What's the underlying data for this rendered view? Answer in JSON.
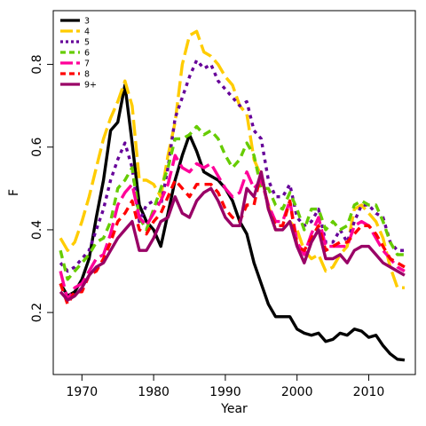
{
  "chart_data": {
    "type": "line",
    "xlabel": "Year",
    "ylabel": "F",
    "xlim": [
      1966,
      2016.5
    ],
    "ylim": [
      0.05,
      0.93
    ],
    "x_ticks": [
      1970,
      1980,
      1990,
      2000,
      2010
    ],
    "y_ticks": [
      0.2,
      0.4,
      0.6,
      0.8
    ],
    "x_tick_labels": [
      "1970",
      "1980",
      "1990",
      "2000",
      "2010"
    ],
    "y_tick_labels": [
      "0.2",
      "0.4",
      "0.6",
      "0.8"
    ],
    "legend_position": "top-left",
    "x": [
      1967,
      1968,
      1969,
      1970,
      1971,
      1972,
      1973,
      1974,
      1975,
      1976,
      1977,
      1978,
      1979,
      1980,
      1981,
      1982,
      1983,
      1984,
      1985,
      1986,
      1987,
      1988,
      1989,
      1990,
      1991,
      1992,
      1993,
      1994,
      1995,
      1996,
      1997,
      1998,
      1999,
      2000,
      2001,
      2002,
      2003,
      2004,
      2005,
      2006,
      2007,
      2008,
      2009,
      2010,
      2011,
      2012,
      2013,
      2014,
      2015
    ],
    "series": [
      {
        "name": "3",
        "color": "#000000",
        "dash": "solid",
        "values": [
          0.27,
          0.24,
          0.25,
          0.28,
          0.33,
          0.43,
          0.52,
          0.64,
          0.66,
          0.75,
          0.61,
          0.46,
          0.42,
          0.4,
          0.36,
          0.44,
          0.52,
          0.58,
          0.63,
          0.59,
          0.54,
          0.53,
          0.52,
          0.5,
          0.47,
          0.42,
          0.39,
          0.32,
          0.27,
          0.22,
          0.19,
          0.19,
          0.19,
          0.16,
          0.15,
          0.145,
          0.15,
          0.13,
          0.135,
          0.15,
          0.145,
          0.16,
          0.155,
          0.14,
          0.145,
          0.12,
          0.1,
          0.087,
          0.085
        ]
      },
      {
        "name": "4",
        "color": "#ffcc00",
        "dash": "long",
        "values": [
          0.38,
          0.35,
          0.37,
          0.42,
          0.48,
          0.55,
          0.62,
          0.67,
          0.71,
          0.76,
          0.7,
          0.52,
          0.52,
          0.51,
          0.48,
          0.58,
          0.66,
          0.8,
          0.87,
          0.88,
          0.83,
          0.82,
          0.8,
          0.77,
          0.75,
          0.7,
          0.68,
          0.57,
          0.53,
          0.46,
          0.4,
          0.4,
          0.42,
          0.4,
          0.35,
          0.33,
          0.34,
          0.3,
          0.31,
          0.34,
          0.36,
          0.45,
          0.46,
          0.44,
          0.42,
          0.38,
          0.31,
          0.26,
          0.26
        ]
      },
      {
        "name": "5",
        "color": "#660099",
        "dash": "dotted",
        "values": [
          0.32,
          0.3,
          0.31,
          0.33,
          0.35,
          0.4,
          0.45,
          0.52,
          0.57,
          0.61,
          0.55,
          0.42,
          0.46,
          0.47,
          0.46,
          0.55,
          0.67,
          0.72,
          0.77,
          0.81,
          0.79,
          0.8,
          0.76,
          0.74,
          0.72,
          0.7,
          0.71,
          0.64,
          0.62,
          0.52,
          0.48,
          0.48,
          0.51,
          0.43,
          0.41,
          0.42,
          0.45,
          0.37,
          0.37,
          0.4,
          0.37,
          0.42,
          0.46,
          0.46,
          0.44,
          0.43,
          0.37,
          0.35,
          0.35
        ]
      },
      {
        "name": "6",
        "color": "#66cc00",
        "dash": "dashed",
        "values": [
          0.35,
          0.28,
          0.3,
          0.32,
          0.34,
          0.37,
          0.38,
          0.42,
          0.5,
          0.52,
          0.55,
          0.43,
          0.4,
          0.45,
          0.5,
          0.55,
          0.62,
          0.62,
          0.63,
          0.65,
          0.63,
          0.64,
          0.62,
          0.58,
          0.55,
          0.57,
          0.61,
          0.58,
          0.5,
          0.5,
          0.46,
          0.45,
          0.49,
          0.45,
          0.4,
          0.45,
          0.45,
          0.4,
          0.42,
          0.4,
          0.41,
          0.46,
          0.47,
          0.46,
          0.46,
          0.42,
          0.37,
          0.34,
          0.34
        ]
      },
      {
        "name": "7",
        "color": "#ff0099",
        "dash": "long",
        "values": [
          0.3,
          0.23,
          0.26,
          0.27,
          0.3,
          0.33,
          0.34,
          0.39,
          0.46,
          0.49,
          0.51,
          0.43,
          0.41,
          0.44,
          0.47,
          0.51,
          0.58,
          0.55,
          0.54,
          0.56,
          0.55,
          0.56,
          0.53,
          0.5,
          0.48,
          0.49,
          0.54,
          0.5,
          0.52,
          0.46,
          0.42,
          0.42,
          0.47,
          0.37,
          0.34,
          0.39,
          0.43,
          0.36,
          0.36,
          0.36,
          0.36,
          0.41,
          0.42,
          0.41,
          0.38,
          0.35,
          0.33,
          0.31,
          0.3
        ]
      },
      {
        "name": "8",
        "color": "#ff0000",
        "dash": "dashed",
        "values": [
          0.27,
          0.22,
          0.25,
          0.25,
          0.29,
          0.3,
          0.33,
          0.37,
          0.42,
          0.44,
          0.47,
          0.4,
          0.39,
          0.42,
          0.44,
          0.48,
          0.52,
          0.5,
          0.48,
          0.51,
          0.51,
          0.51,
          0.49,
          0.45,
          0.43,
          0.42,
          0.46,
          0.46,
          0.54,
          0.45,
          0.41,
          0.41,
          0.47,
          0.36,
          0.35,
          0.38,
          0.41,
          0.35,
          0.36,
          0.37,
          0.37,
          0.39,
          0.41,
          0.41,
          0.39,
          0.36,
          0.33,
          0.32,
          0.31
        ]
      },
      {
        "name": "9+",
        "color": "#990066",
        "dash": "solid",
        "values": [
          0.25,
          0.23,
          0.24,
          0.26,
          0.29,
          0.31,
          0.32,
          0.35,
          0.38,
          0.4,
          0.42,
          0.35,
          0.35,
          0.38,
          0.42,
          0.43,
          0.48,
          0.44,
          0.43,
          0.47,
          0.49,
          0.5,
          0.47,
          0.43,
          0.41,
          0.41,
          0.5,
          0.48,
          0.54,
          0.45,
          0.4,
          0.4,
          0.42,
          0.36,
          0.32,
          0.37,
          0.4,
          0.33,
          0.33,
          0.34,
          0.32,
          0.35,
          0.36,
          0.36,
          0.34,
          0.32,
          0.31,
          0.3,
          0.29
        ]
      }
    ]
  }
}
